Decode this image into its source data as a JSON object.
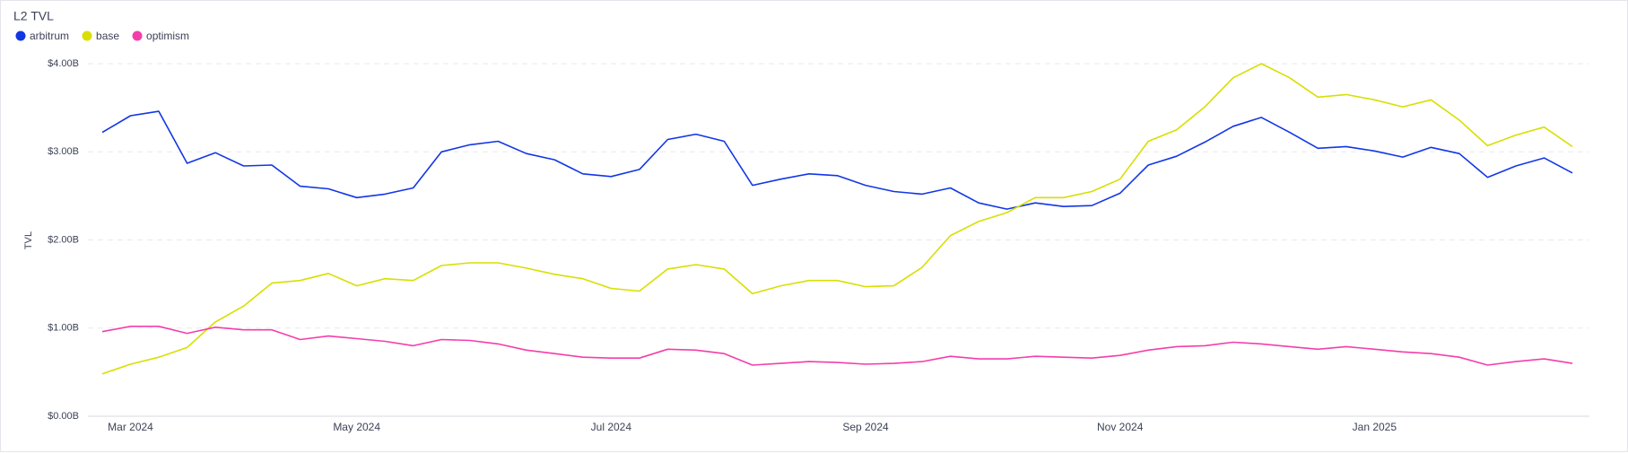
{
  "chart_data": {
    "type": "line",
    "title": "L2 TVL",
    "y_label": "TVL",
    "categories": [
      null,
      "Mar 2024",
      null,
      null,
      null,
      null,
      null,
      null,
      null,
      "May 2024",
      null,
      null,
      null,
      null,
      null,
      null,
      null,
      null,
      "Jul 2024",
      null,
      null,
      null,
      null,
      null,
      null,
      null,
      null,
      "Sep 2024",
      null,
      null,
      null,
      null,
      null,
      null,
      null,
      null,
      "Nov 2024",
      null,
      null,
      null,
      null,
      null,
      null,
      null,
      null,
      "Jan 2025",
      null,
      null,
      null,
      null,
      null,
      null,
      null
    ],
    "series": [
      {
        "name": "arbitrum",
        "color": "#1236e6",
        "values": [
          3.22,
          3.41,
          3.46,
          2.87,
          2.99,
          2.84,
          2.85,
          2.61,
          2.58,
          2.48,
          2.52,
          2.59,
          3.0,
          3.08,
          3.12,
          2.98,
          2.91,
          2.75,
          2.72,
          2.8,
          3.14,
          3.2,
          3.12,
          2.62,
          2.69,
          2.75,
          2.73,
          2.62,
          2.55,
          2.52,
          2.59,
          2.42,
          2.35,
          2.42,
          2.38,
          2.39,
          2.53,
          2.85,
          2.95,
          3.11,
          3.29,
          3.39,
          3.22,
          3.04,
          3.06,
          3.01,
          2.94,
          3.05,
          2.98,
          2.71,
          2.84,
          2.93,
          2.76
        ]
      },
      {
        "name": "base",
        "color": "#d8df00",
        "values": [
          0.48,
          0.59,
          0.67,
          0.78,
          1.07,
          1.25,
          1.51,
          1.54,
          1.62,
          1.48,
          1.56,
          1.54,
          1.71,
          1.74,
          1.74,
          1.68,
          1.61,
          1.56,
          1.45,
          1.42,
          1.67,
          1.72,
          1.67,
          1.39,
          1.48,
          1.54,
          1.54,
          1.47,
          1.48,
          1.69,
          2.05,
          2.21,
          2.31,
          2.48,
          2.48,
          2.55,
          2.69,
          3.12,
          3.25,
          3.51,
          3.84,
          4.0,
          3.84,
          3.62,
          3.65,
          3.59,
          3.51,
          3.59,
          3.36,
          3.07,
          3.19,
          3.28,
          3.06
        ]
      },
      {
        "name": "optimism",
        "color": "#f43ea9",
        "values": [
          0.96,
          1.02,
          1.02,
          0.94,
          1.01,
          0.98,
          0.98,
          0.87,
          0.91,
          0.88,
          0.85,
          0.8,
          0.87,
          0.86,
          0.82,
          0.75,
          0.71,
          0.67,
          0.66,
          0.66,
          0.76,
          0.75,
          0.71,
          0.58,
          0.6,
          0.62,
          0.61,
          0.59,
          0.6,
          0.62,
          0.68,
          0.65,
          0.65,
          0.68,
          0.67,
          0.66,
          0.69,
          0.75,
          0.79,
          0.8,
          0.84,
          0.82,
          0.79,
          0.76,
          0.79,
          0.76,
          0.73,
          0.71,
          0.67,
          0.58,
          0.62,
          0.65,
          0.6
        ]
      }
    ],
    "ylim": [
      0,
      4
    ],
    "yticks": [
      {
        "value": 0,
        "label": "$0.00B"
      },
      {
        "value": 1,
        "label": "$1.00B"
      },
      {
        "value": 2,
        "label": "$2.00B"
      },
      {
        "value": 3,
        "label": "$3.00B"
      },
      {
        "value": 4,
        "label": "$4.00B"
      }
    ],
    "grid": true
  }
}
